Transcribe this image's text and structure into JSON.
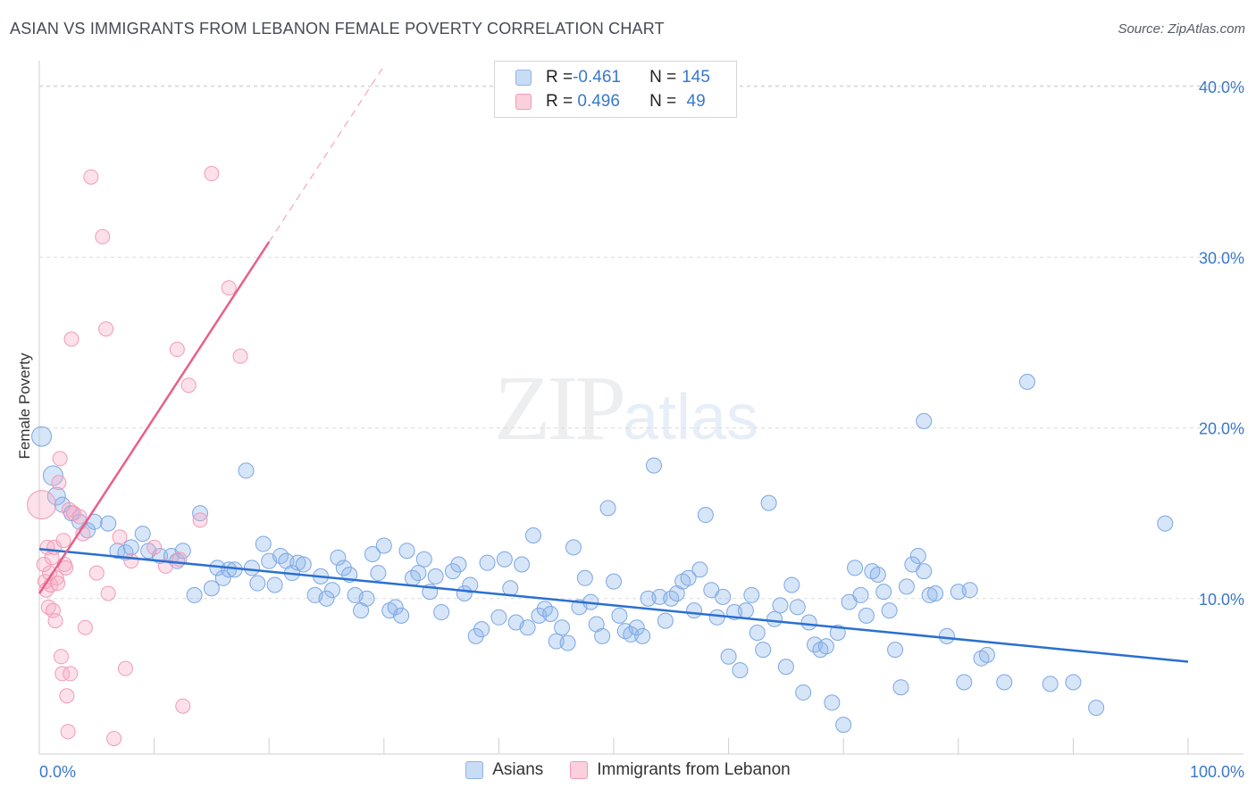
{
  "header": {
    "title": "ASIAN VS IMMIGRANTS FROM LEBANON FEMALE POVERTY CORRELATION CHART",
    "source": "Source: ZipAtlas.com"
  },
  "watermark": {
    "zip": "ZIP",
    "atlas": "atlas"
  },
  "legend_top": {
    "rows": [
      {
        "r_label": "R = ",
        "r_value": "-0.461",
        "n_label": "N = ",
        "n_value": "145",
        "color": "#a9c8ee"
      },
      {
        "r_label": "R = ",
        "r_value": " 0.496",
        "n_label": "N = ",
        "n_value": " 49",
        "color": "#f6b8cb"
      }
    ]
  },
  "legend_bottom": [
    {
      "label": "Asians",
      "color": "#a9c8ee"
    },
    {
      "label": "Immigrants from Lebanon",
      "color": "#f6b8cb"
    }
  ],
  "colors": {
    "blue_fill": "rgba(140,180,235,0.35)",
    "blue_stroke": "#7aa7e3",
    "blue_line": "#2a6fd1",
    "pink_fill": "rgba(246,170,195,0.35)",
    "pink_stroke": "#f19ab6",
    "pink_line": "#e8608a",
    "tick_label": "#3a78c9",
    "grid": "#dcdcdc"
  },
  "chart_data": {
    "type": "scatter",
    "title": "ASIAN VS IMMIGRANTS FROM LEBANON FEMALE POVERTY CORRELATION CHART",
    "xlabel": "",
    "ylabel": "Female Poverty",
    "xlim": [
      0,
      100
    ],
    "ylim": [
      0,
      40
    ],
    "x_tick_labels": [
      "0.0%",
      "100.0%"
    ],
    "y_ticks": [
      10,
      20,
      30,
      40
    ],
    "y_tick_labels": [
      "10.0%",
      "20.0%",
      "30.0%",
      "40.0%"
    ],
    "grid": true,
    "legend_position": "bottom",
    "series": [
      {
        "name": "Asians",
        "r": -0.461,
        "n": 145,
        "trend": {
          "x": [
            0,
            100
          ],
          "y": [
            12.9,
            6.3
          ]
        },
        "points": [
          [
            0.2,
            19.5
          ],
          [
            1.2,
            17.2
          ],
          [
            1.5,
            16.0
          ],
          [
            2.0,
            15.5
          ],
          [
            2.8,
            15.0
          ],
          [
            3.5,
            14.5
          ],
          [
            4.2,
            14.0
          ],
          [
            4.8,
            14.5
          ],
          [
            6.0,
            14.4
          ],
          [
            6.8,
            12.8
          ],
          [
            7.5,
            12.7
          ],
          [
            8.0,
            13.0
          ],
          [
            9.0,
            13.8
          ],
          [
            9.5,
            12.8
          ],
          [
            10.5,
            12.5
          ],
          [
            11.5,
            12.5
          ],
          [
            12.0,
            12.2
          ],
          [
            12.5,
            12.8
          ],
          [
            13.5,
            10.2
          ],
          [
            14.0,
            15.0
          ],
          [
            15.0,
            10.6
          ],
          [
            15.5,
            11.8
          ],
          [
            16.0,
            11.2
          ],
          [
            16.5,
            11.7
          ],
          [
            17.0,
            11.7
          ],
          [
            18.0,
            17.5
          ],
          [
            18.5,
            11.8
          ],
          [
            19.0,
            10.9
          ],
          [
            19.5,
            13.2
          ],
          [
            20.0,
            12.2
          ],
          [
            20.5,
            10.8
          ],
          [
            21.0,
            12.5
          ],
          [
            21.5,
            12.2
          ],
          [
            22.0,
            11.5
          ],
          [
            22.5,
            12.1
          ],
          [
            23.0,
            12.0
          ],
          [
            24.0,
            10.2
          ],
          [
            24.5,
            11.3
          ],
          [
            25.0,
            10.0
          ],
          [
            25.5,
            10.5
          ],
          [
            26.0,
            12.4
          ],
          [
            26.5,
            11.8
          ],
          [
            27.0,
            11.4
          ],
          [
            27.5,
            10.2
          ],
          [
            28.0,
            9.3
          ],
          [
            28.5,
            10.0
          ],
          [
            29.0,
            12.6
          ],
          [
            29.5,
            11.5
          ],
          [
            30.0,
            13.1
          ],
          [
            30.5,
            9.3
          ],
          [
            31.0,
            9.5
          ],
          [
            31.5,
            9.0
          ],
          [
            32.0,
            12.8
          ],
          [
            32.5,
            11.2
          ],
          [
            33.0,
            11.5
          ],
          [
            33.5,
            12.3
          ],
          [
            34.0,
            10.4
          ],
          [
            34.5,
            11.3
          ],
          [
            35.0,
            9.2
          ],
          [
            36.0,
            11.6
          ],
          [
            36.5,
            12.0
          ],
          [
            37.0,
            10.3
          ],
          [
            37.5,
            10.8
          ],
          [
            38.0,
            7.8
          ],
          [
            38.5,
            8.2
          ],
          [
            39.0,
            12.1
          ],
          [
            40.0,
            8.9
          ],
          [
            40.5,
            12.3
          ],
          [
            41.0,
            10.6
          ],
          [
            41.5,
            8.6
          ],
          [
            42.0,
            12.0
          ],
          [
            42.5,
            8.3
          ],
          [
            43.0,
            13.7
          ],
          [
            43.5,
            9.0
          ],
          [
            44.0,
            9.4
          ],
          [
            44.5,
            9.1
          ],
          [
            45.0,
            7.5
          ],
          [
            45.5,
            8.3
          ],
          [
            46.0,
            7.4
          ],
          [
            46.5,
            13.0
          ],
          [
            47.0,
            9.5
          ],
          [
            47.5,
            11.2
          ],
          [
            48.0,
            9.8
          ],
          [
            48.5,
            8.5
          ],
          [
            49.0,
            7.8
          ],
          [
            49.5,
            15.3
          ],
          [
            50.0,
            11.0
          ],
          [
            50.5,
            9.0
          ],
          [
            51.0,
            8.1
          ],
          [
            51.5,
            7.9
          ],
          [
            52.0,
            8.3
          ],
          [
            52.5,
            7.8
          ],
          [
            53.0,
            10.0
          ],
          [
            53.5,
            17.8
          ],
          [
            54.0,
            10.1
          ],
          [
            54.5,
            8.7
          ],
          [
            55.0,
            10.0
          ],
          [
            55.5,
            10.3
          ],
          [
            56.0,
            11.0
          ],
          [
            56.5,
            11.2
          ],
          [
            57.0,
            9.3
          ],
          [
            57.5,
            11.7
          ],
          [
            58.0,
            14.9
          ],
          [
            58.5,
            10.5
          ],
          [
            59.0,
            8.9
          ],
          [
            59.5,
            10.1
          ],
          [
            60.0,
            6.6
          ],
          [
            60.5,
            9.2
          ],
          [
            61.0,
            5.8
          ],
          [
            61.5,
            9.3
          ],
          [
            62.0,
            10.2
          ],
          [
            62.5,
            8.0
          ],
          [
            63.0,
            7.0
          ],
          [
            63.5,
            15.6
          ],
          [
            64.0,
            8.8
          ],
          [
            64.5,
            9.6
          ],
          [
            65.0,
            6.0
          ],
          [
            65.5,
            10.8
          ],
          [
            66.0,
            9.5
          ],
          [
            66.5,
            4.5
          ],
          [
            67.0,
            8.6
          ],
          [
            67.5,
            7.3
          ],
          [
            68.0,
            7.0
          ],
          [
            68.5,
            7.2
          ],
          [
            69.0,
            3.9
          ],
          [
            69.5,
            8.0
          ],
          [
            70.0,
            2.6
          ],
          [
            70.5,
            9.8
          ],
          [
            71.0,
            11.8
          ],
          [
            71.5,
            10.2
          ],
          [
            72.0,
            9.0
          ],
          [
            72.5,
            11.6
          ],
          [
            73.0,
            11.4
          ],
          [
            73.5,
            10.4
          ],
          [
            74.0,
            9.3
          ],
          [
            74.5,
            7.0
          ],
          [
            75.0,
            4.8
          ],
          [
            75.5,
            10.7
          ],
          [
            76.0,
            12.0
          ],
          [
            76.5,
            12.5
          ],
          [
            77.0,
            11.6
          ],
          [
            77.5,
            10.2
          ],
          [
            78.0,
            10.3
          ],
          [
            79.0,
            7.8
          ],
          [
            80.0,
            10.4
          ],
          [
            80.5,
            5.1
          ],
          [
            81.0,
            10.5
          ],
          [
            82.0,
            6.5
          ],
          [
            82.5,
            6.7
          ],
          [
            84.0,
            5.1
          ],
          [
            86.0,
            22.7
          ],
          [
            88.0,
            5.0
          ],
          [
            90.0,
            5.1
          ],
          [
            92.0,
            3.6
          ],
          [
            98.0,
            14.4
          ],
          [
            77.0,
            20.4
          ]
        ]
      },
      {
        "name": "Immigrants from Lebanon",
        "r": 0.496,
        "n": 49,
        "trend": {
          "x": [
            0,
            20
          ],
          "y": [
            10.3,
            30.9
          ]
        },
        "trend_extended": {
          "x": [
            20,
            30
          ],
          "y": [
            30.9,
            41.2
          ]
        },
        "points": [
          [
            0.2,
            15.5
          ],
          [
            0.4,
            12.0
          ],
          [
            0.5,
            11.0
          ],
          [
            0.6,
            10.5
          ],
          [
            0.7,
            13.0
          ],
          [
            0.8,
            9.5
          ],
          [
            0.9,
            11.5
          ],
          [
            1.0,
            10.8
          ],
          [
            1.1,
            12.4
          ],
          [
            1.2,
            9.3
          ],
          [
            1.3,
            13.0
          ],
          [
            1.4,
            8.7
          ],
          [
            1.5,
            11.2
          ],
          [
            1.6,
            10.9
          ],
          [
            1.7,
            16.8
          ],
          [
            1.8,
            18.2
          ],
          [
            1.9,
            6.6
          ],
          [
            2.0,
            5.6
          ],
          [
            2.1,
            13.4
          ],
          [
            2.2,
            12.0
          ],
          [
            2.3,
            11.8
          ],
          [
            2.4,
            4.3
          ],
          [
            2.5,
            2.2
          ],
          [
            2.6,
            15.2
          ],
          [
            2.7,
            5.6
          ],
          [
            2.8,
            25.2
          ],
          [
            3.0,
            15.0
          ],
          [
            3.5,
            14.8
          ],
          [
            3.8,
            13.8
          ],
          [
            4.0,
            8.3
          ],
          [
            4.5,
            34.7
          ],
          [
            5.0,
            11.5
          ],
          [
            5.5,
            31.2
          ],
          [
            5.8,
            25.8
          ],
          [
            6.0,
            10.3
          ],
          [
            6.5,
            1.8
          ],
          [
            7.0,
            13.6
          ],
          [
            7.5,
            5.9
          ],
          [
            8.0,
            12.2
          ],
          [
            10.0,
            13.0
          ],
          [
            11.0,
            11.9
          ],
          [
            12.0,
            24.6
          ],
          [
            12.5,
            3.7
          ],
          [
            13.0,
            22.5
          ],
          [
            14.0,
            14.6
          ],
          [
            15.0,
            34.9
          ],
          [
            16.5,
            28.2
          ],
          [
            17.5,
            24.2
          ],
          [
            12.2,
            12.3
          ]
        ]
      }
    ]
  }
}
